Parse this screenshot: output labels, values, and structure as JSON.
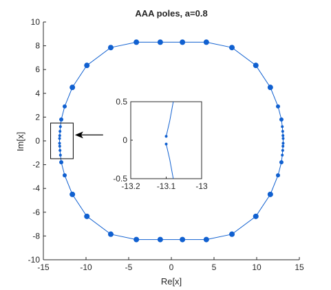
{
  "colors": {
    "poles": "#1060d0",
    "axes": "#262626",
    "background": "#ffffff",
    "arrow": "#000000"
  },
  "chart_data": [
    {
      "id": "main",
      "type": "scatter",
      "title": "AAA poles, a=0.8",
      "xlabel": "Re[x]",
      "ylabel": "Im[x]",
      "xlim": [
        -15,
        15
      ],
      "ylim": [
        -10,
        10
      ],
      "xticks": [
        -15,
        -10,
        -5,
        0,
        5,
        10,
        15
      ],
      "xtick_labels": [
        "-15",
        "-10",
        "-5",
        "0",
        "5",
        "10",
        "15"
      ],
      "yticks": [
        -10,
        -8,
        -6,
        -4,
        -2,
        0,
        2,
        4,
        6,
        8,
        10
      ],
      "ytick_labels": [
        "-10",
        "-8",
        "-6",
        "-4",
        "-2",
        "0",
        "2",
        "4",
        "6",
        "8",
        "10"
      ],
      "grid": false,
      "series": [
        {
          "marker": "circle",
          "connected": true,
          "points": [
            [
              -4.1,
              8.3
            ],
            [
              -1.3,
              8.3
            ],
            [
              1.3,
              8.3
            ],
            [
              4.1,
              8.3
            ],
            [
              7.1,
              7.85
            ],
            [
              9.9,
              6.35
            ],
            [
              11.6,
              4.5
            ],
            [
              12.5,
              2.9
            ],
            [
              12.9,
              1.8
            ],
            [
              13.0,
              1.2
            ],
            [
              13.05,
              0.8
            ],
            [
              13.08,
              0.45
            ],
            [
              13.1,
              0.2
            ],
            [
              13.1,
              -0.2
            ],
            [
              13.08,
              -0.45
            ],
            [
              13.05,
              -0.8
            ],
            [
              13.0,
              -1.2
            ],
            [
              12.9,
              -1.8
            ],
            [
              12.5,
              -2.9
            ],
            [
              11.6,
              -4.5
            ],
            [
              9.9,
              -6.35
            ],
            [
              7.1,
              -7.85
            ],
            [
              4.1,
              -8.3
            ],
            [
              1.3,
              -8.3
            ],
            [
              -1.3,
              -8.3
            ],
            [
              -4.1,
              -8.3
            ],
            [
              -7.1,
              -7.85
            ],
            [
              -9.9,
              -6.35
            ],
            [
              -11.6,
              -4.5
            ],
            [
              -12.5,
              -2.9
            ],
            [
              -12.9,
              -1.8
            ],
            [
              -13.0,
              -1.2
            ],
            [
              -13.05,
              -0.8
            ],
            [
              -13.08,
              -0.45
            ],
            [
              -13.1,
              -0.2
            ],
            [
              -13.1,
              0.2
            ],
            [
              -13.08,
              0.45
            ],
            [
              -13.05,
              0.8
            ],
            [
              -13.0,
              1.2
            ],
            [
              -12.9,
              1.8
            ],
            [
              -12.5,
              2.9
            ],
            [
              -11.6,
              4.5
            ],
            [
              -9.9,
              6.35
            ],
            [
              -7.1,
              7.85
            ]
          ]
        }
      ],
      "annotations": [
        {
          "type": "rectangle",
          "x": [
            -14.15,
            -11.5
          ],
          "y": [
            -1.5,
            1.5
          ]
        },
        {
          "type": "arrow",
          "from": [
            -8.0,
            0.5
          ],
          "to": [
            -11.3,
            0.5
          ]
        }
      ]
    },
    {
      "id": "inset",
      "type": "scatter",
      "xlim": [
        -13.2,
        -13.0
      ],
      "ylim": [
        -0.5,
        0.5
      ],
      "xticks": [
        -13.2,
        -13.1,
        -13.0
      ],
      "xtick_labels": [
        "-13.2",
        "-13.1",
        "-13"
      ],
      "yticks": [
        -0.5,
        0,
        0.5
      ],
      "ytick_labels": [
        "-0.5",
        "0",
        "0.5"
      ],
      "grid": false,
      "series": [
        {
          "marker": "circle",
          "connected": true,
          "segments": [
            [
              [
                -13.1,
                0.05
              ],
              [
                -13.09,
                0.25
              ],
              [
                -13.08,
                0.5
              ]
            ],
            [
              [
                -13.1,
                -0.05
              ],
              [
                -13.09,
                -0.25
              ],
              [
                -13.08,
                -0.5
              ]
            ]
          ],
          "points": [
            [
              -13.1,
              0.05
            ],
            [
              -13.1,
              -0.05
            ]
          ]
        }
      ]
    }
  ]
}
